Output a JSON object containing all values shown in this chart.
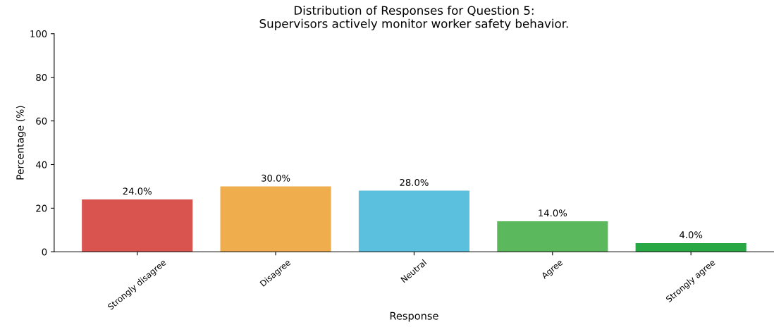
{
  "chart_data": {
    "type": "bar",
    "title": "Distribution of Responses for Question 5:\nSupervisors actively monitor worker safety behavior.",
    "xlabel": "Response",
    "ylabel": "Percentage (%)",
    "categories": [
      "Strongly disagree",
      "Disagree",
      "Neutral",
      "Agree",
      "Strongly agree"
    ],
    "values": [
      24.0,
      30.0,
      28.0,
      14.0,
      4.0
    ],
    "colors": [
      "#d9534f",
      "#f0ad4e",
      "#5bc0de",
      "#5cb85c",
      "#28a745"
    ],
    "value_labels": [
      "24.0%",
      "30.0%",
      "28.0%",
      "14.0%",
      "4.0%"
    ],
    "ylim": [
      0,
      100
    ],
    "yticks": [
      0,
      20,
      40,
      60,
      80,
      100
    ],
    "grid": false,
    "legend": false
  }
}
